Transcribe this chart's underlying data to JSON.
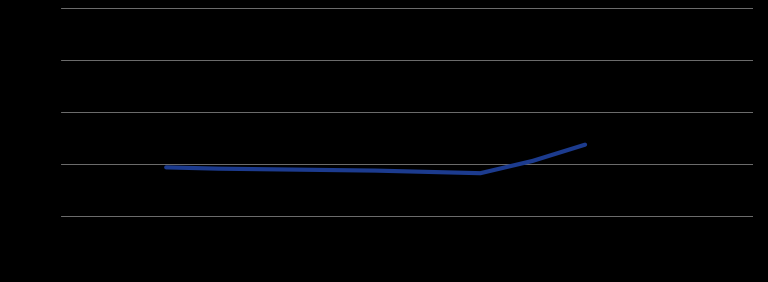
{
  "years": [
    2016,
    2016.25,
    2017,
    2017.25,
    2017.5,
    2017.75,
    2018
  ],
  "values": [
    55.5,
    55.3,
    55.0,
    54.8,
    54.6,
    56.5,
    59.0
  ],
  "line_color": "#1c3b8e",
  "line_width": 3.0,
  "background_color": "#000000",
  "grid_color": "#808080",
  "grid_linewidth": 0.6,
  "ylim": [
    40,
    80
  ],
  "xlim": [
    2015.5,
    2018.8
  ],
  "yticks": [
    48,
    56,
    64,
    72,
    80
  ],
  "xticks": [
    2016,
    2017,
    2018
  ]
}
